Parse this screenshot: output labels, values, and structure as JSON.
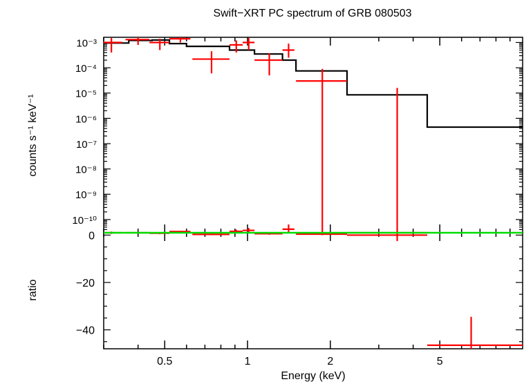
{
  "title": "Swift−XRT PC spectrum of GRB 080503",
  "chart_data": [
    {
      "type": "line",
      "panel": "spectrum",
      "ylabel": "counts s⁻¹ keV⁻¹",
      "y_scale": "log",
      "ylim": [
        3e-11,
        0.0016
      ],
      "x_scale": "log",
      "xlim": [
        0.3,
        10
      ],
      "y_ticks": [
        {
          "value": 0.001,
          "label": "10⁻³"
        },
        {
          "value": 0.0001,
          "label": "10⁻⁴"
        },
        {
          "value": 1e-05,
          "label": "10⁻⁵"
        },
        {
          "value": 1e-06,
          "label": "10⁻⁶"
        },
        {
          "value": 1e-07,
          "label": "10⁻⁷"
        },
        {
          "value": 1e-08,
          "label": "10⁻⁸"
        },
        {
          "value": 1e-09,
          "label": "10⁻⁹"
        },
        {
          "value": 1e-10,
          "label": "10⁻¹⁰"
        }
      ],
      "model_color": "#000000",
      "data_color": "#ff0000",
      "model_steps": [
        {
          "x0": 0.3,
          "x1": 0.37,
          "y": 0.00095
        },
        {
          "x0": 0.37,
          "x1": 0.45,
          "y": 0.0012
        },
        {
          "x0": 0.45,
          "x1": 0.52,
          "y": 0.00125
        },
        {
          "x0": 0.52,
          "x1": 0.6,
          "y": 0.0009
        },
        {
          "x0": 0.6,
          "x1": 0.86,
          "y": 0.0007
        },
        {
          "x0": 0.86,
          "x1": 1.06,
          "y": 0.0005
        },
        {
          "x0": 1.06,
          "x1": 1.34,
          "y": 0.00035
        },
        {
          "x0": 1.34,
          "x1": 1.5,
          "y": 0.0002
        },
        {
          "x0": 1.5,
          "x1": 2.3,
          "y": 7.5e-05
        },
        {
          "x0": 2.3,
          "x1": 4.5,
          "y": 8.5e-06
        },
        {
          "x0": 4.5,
          "x1": 10,
          "y": 4.5e-07
        }
      ],
      "data_points": [
        {
          "x": 0.32,
          "xlo": 0.3,
          "xhi": 0.35,
          "y": 0.001,
          "ylo": 0.0004,
          "yhi": 0.0015
        },
        {
          "x": 0.4,
          "xlo": 0.36,
          "xhi": 0.44,
          "y": 0.0013,
          "ylo": 0.0008,
          "yhi": 0.0016
        },
        {
          "x": 0.48,
          "xlo": 0.44,
          "xhi": 0.52,
          "y": 0.001,
          "ylo": 0.0005,
          "yhi": 0.0014
        },
        {
          "x": 0.57,
          "xlo": 0.52,
          "xhi": 0.62,
          "y": 0.0014,
          "ylo": 0.001,
          "yhi": 0.0016
        },
        {
          "x": 0.74,
          "xlo": 0.63,
          "xhi": 0.86,
          "y": 0.00022,
          "ylo": 6e-05,
          "yhi": 0.00045
        },
        {
          "x": 0.91,
          "xlo": 0.86,
          "xhi": 0.96,
          "y": 0.0008,
          "ylo": 0.0004,
          "yhi": 0.0012
        },
        {
          "x": 1.01,
          "xlo": 0.96,
          "xhi": 1.06,
          "y": 0.001,
          "ylo": 0.0005,
          "yhi": 0.0015
        },
        {
          "x": 1.2,
          "xlo": 1.06,
          "xhi": 1.34,
          "y": 0.0002,
          "ylo": 5e-05,
          "yhi": 0.00038
        },
        {
          "x": 1.41,
          "xlo": 1.34,
          "xhi": 1.48,
          "y": 0.0005,
          "ylo": 0.00025,
          "yhi": 0.0009
        },
        {
          "x": 1.87,
          "xlo": 1.5,
          "xhi": 2.3,
          "y": 3e-05,
          "ylo": 3e-11,
          "yhi": 9e-05
        },
        {
          "x": 3.5,
          "xlo": 2.3,
          "xhi": 4.5,
          "y": 3e-11,
          "ylo": 3e-11,
          "yhi": 1.6e-05
        }
      ]
    },
    {
      "type": "scatter",
      "panel": "ratio",
      "ylabel": "ratio",
      "xlabel": "Energy (keV)",
      "x_scale": "log",
      "xlim": [
        0.3,
        10
      ],
      "ylim": [
        -48,
        1
      ],
      "y_ticks": [
        {
          "value": 0,
          "label": "0"
        },
        {
          "value": -20,
          "label": "−20"
        },
        {
          "value": -40,
          "label": "−40"
        }
      ],
      "x_ticks": [
        {
          "value": 0.5,
          "label": "0.5"
        },
        {
          "value": 1,
          "label": "1"
        },
        {
          "value": 2,
          "label": "2"
        },
        {
          "value": 5,
          "label": "5"
        }
      ],
      "reference_line": {
        "y": 1,
        "color": "#00dd00"
      },
      "data_color": "#ff0000",
      "data_points": [
        {
          "x": 0.32,
          "xlo": 0.3,
          "xhi": 0.35,
          "y": 1.0,
          "ylo": 0.5,
          "yhi": 1.5
        },
        {
          "x": 0.4,
          "xlo": 0.36,
          "xhi": 0.44,
          "y": 1.0,
          "ylo": 0.6,
          "yhi": 1.4
        },
        {
          "x": 0.48,
          "xlo": 0.44,
          "xhi": 0.52,
          "y": 0.8,
          "ylo": 0.4,
          "yhi": 1.2
        },
        {
          "x": 0.57,
          "xlo": 0.52,
          "xhi": 0.62,
          "y": 1.5,
          "ylo": 1.1,
          "yhi": 1.8
        },
        {
          "x": 0.74,
          "xlo": 0.63,
          "xhi": 0.86,
          "y": 0.3,
          "ylo": 0.1,
          "yhi": 0.7
        },
        {
          "x": 0.91,
          "xlo": 0.86,
          "xhi": 0.96,
          "y": 1.6,
          "ylo": 0.8,
          "yhi": 2.3
        },
        {
          "x": 1.01,
          "xlo": 0.96,
          "xhi": 1.06,
          "y": 2.0,
          "ylo": 1.0,
          "yhi": 3.0
        },
        {
          "x": 1.2,
          "xlo": 1.06,
          "xhi": 1.34,
          "y": 0.6,
          "ylo": 0.15,
          "yhi": 1.1
        },
        {
          "x": 1.41,
          "xlo": 1.34,
          "xhi": 1.48,
          "y": 2.5,
          "ylo": 1.2,
          "yhi": 4.5
        },
        {
          "x": 1.87,
          "xlo": 1.5,
          "xhi": 2.3,
          "y": 0.4,
          "ylo": 0.0,
          "yhi": 1.2
        },
        {
          "x": 3.5,
          "xlo": 2.3,
          "xhi": 4.5,
          "y": 0.0,
          "ylo": -2.5,
          "yhi": 1.9
        },
        {
          "x": 6.5,
          "xlo": 4.5,
          "xhi": 10,
          "y": -46.5,
          "ylo": -48,
          "yhi": -34.5
        }
      ]
    }
  ]
}
